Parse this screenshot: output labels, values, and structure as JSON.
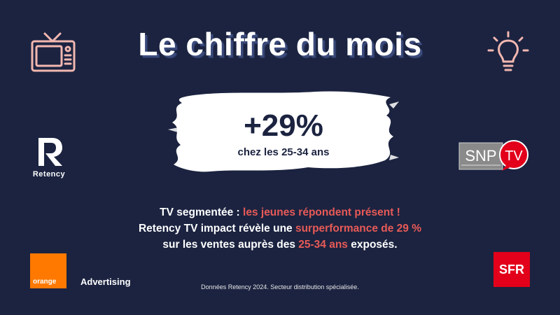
{
  "header": {
    "title": "Le chiffre du mois"
  },
  "highlight": {
    "value": "+29%",
    "subtitle": "chez les 25-34 ans"
  },
  "body": {
    "line1_a": "TV segmentée : ",
    "line1_b": "les jeunes répondent présent !",
    "line2_a": "Retency TV impact révèle une ",
    "line2_b": "surperformance de 29 %",
    "line3_a": "sur les ventes auprès des ",
    "line3_b": "25-34 ans",
    "line3_c": " exposés."
  },
  "footnote": "Données Retency 2024. Secteur distribution spécialisée.",
  "logos": {
    "retency": "Retency",
    "orange": "orange",
    "advertising": "Advertising",
    "sfr": "SFR",
    "snp_left": "SNP",
    "snp_right": "TV"
  },
  "icons": [
    "tv-icon",
    "lightbulb-icon"
  ],
  "colors": {
    "background": "#1b2340",
    "accent": "#e85a57",
    "orange": "#ff7900",
    "sfr": "#e2001a"
  }
}
